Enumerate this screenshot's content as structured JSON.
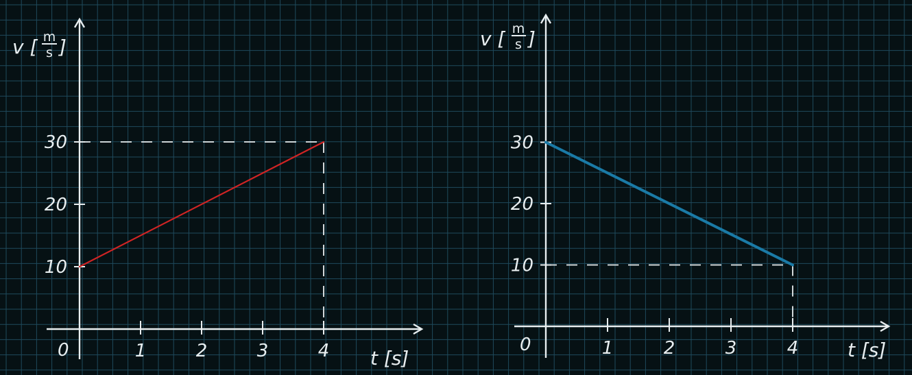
{
  "page": {
    "background": "#061114",
    "grid_color": "#1f4a5c",
    "axis_color": "#e8eef0"
  },
  "chart_data": [
    {
      "type": "line",
      "title": "",
      "xlabel": "t [s]",
      "ylabel_var": "v",
      "ylabel_num": "m",
      "ylabel_den": "s",
      "origin_label": "0",
      "x_ticks": [
        "1",
        "2",
        "3",
        "4"
      ],
      "y_ticks": [
        "10",
        "20",
        "30"
      ],
      "xlim": [
        0,
        4.5
      ],
      "ylim": [
        0,
        40
      ],
      "color": "#d02424",
      "series": [
        {
          "x": [
            0,
            4
          ],
          "y": [
            10,
            30
          ]
        }
      ],
      "guides": {
        "x": 4,
        "y": 30
      },
      "grid": true
    },
    {
      "type": "line",
      "title": "",
      "xlabel": "t [s]",
      "ylabel_var": "v",
      "ylabel_num": "m",
      "ylabel_den": "s",
      "origin_label": "0",
      "x_ticks": [
        "1",
        "2",
        "3",
        "4"
      ],
      "y_ticks": [
        "10",
        "20",
        "30"
      ],
      "xlim": [
        0,
        4.5
      ],
      "ylim": [
        0,
        40
      ],
      "color": "#1a7aa6",
      "series": [
        {
          "x": [
            0,
            4
          ],
          "y": [
            30,
            10
          ]
        }
      ],
      "guides": {
        "x": 4,
        "y": 10
      },
      "grid": true
    }
  ]
}
